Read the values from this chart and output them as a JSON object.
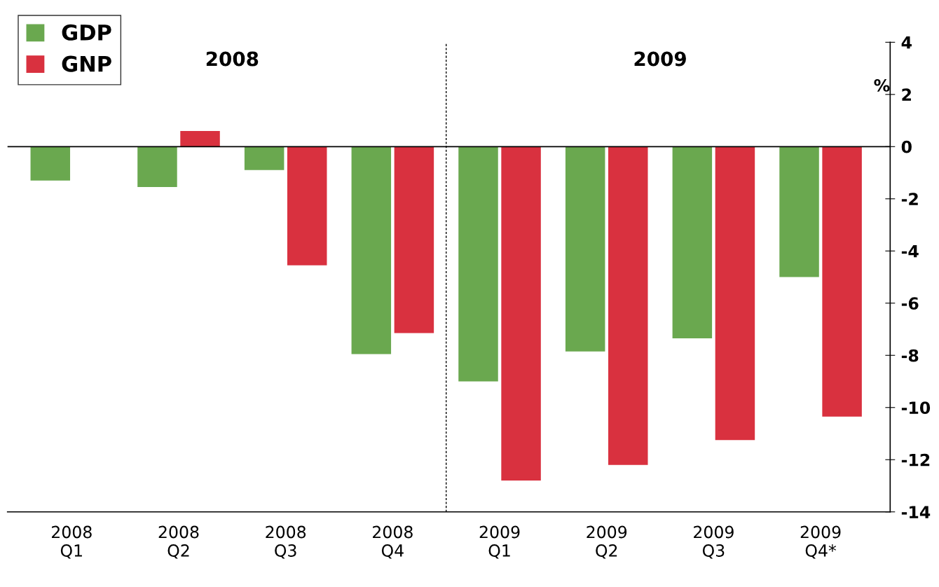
{
  "chart_data": {
    "type": "bar",
    "categories": [
      "2008\nQ1",
      "2008\nQ2",
      "2008\nQ3",
      "2008\nQ4",
      "2009\nQ1",
      "2009\nQ2",
      "2009\nQ3",
      "2009\nQ4*"
    ],
    "series": [
      {
        "name": "GDP",
        "color": "#6aa84f",
        "values": [
          -1.3,
          -1.55,
          -0.9,
          -7.95,
          -9.0,
          -7.85,
          -7.35,
          -5.0
        ]
      },
      {
        "name": "GNP",
        "color": "#d9313f",
        "values": [
          null,
          0.6,
          -4.55,
          -7.15,
          -12.8,
          -12.2,
          -11.25,
          -10.35
        ]
      }
    ],
    "ylabel": "%",
    "ylim": [
      -14,
      4
    ],
    "yticks": [
      -14,
      -12,
      -10,
      -8,
      -6,
      -4,
      -2,
      0,
      2,
      4
    ],
    "annotations": [
      "2008",
      "2009"
    ],
    "ref_lines": [
      {
        "axis": "y",
        "value": 0,
        "color": "#000000"
      }
    ],
    "legend": "top left",
    "grid": false
  }
}
